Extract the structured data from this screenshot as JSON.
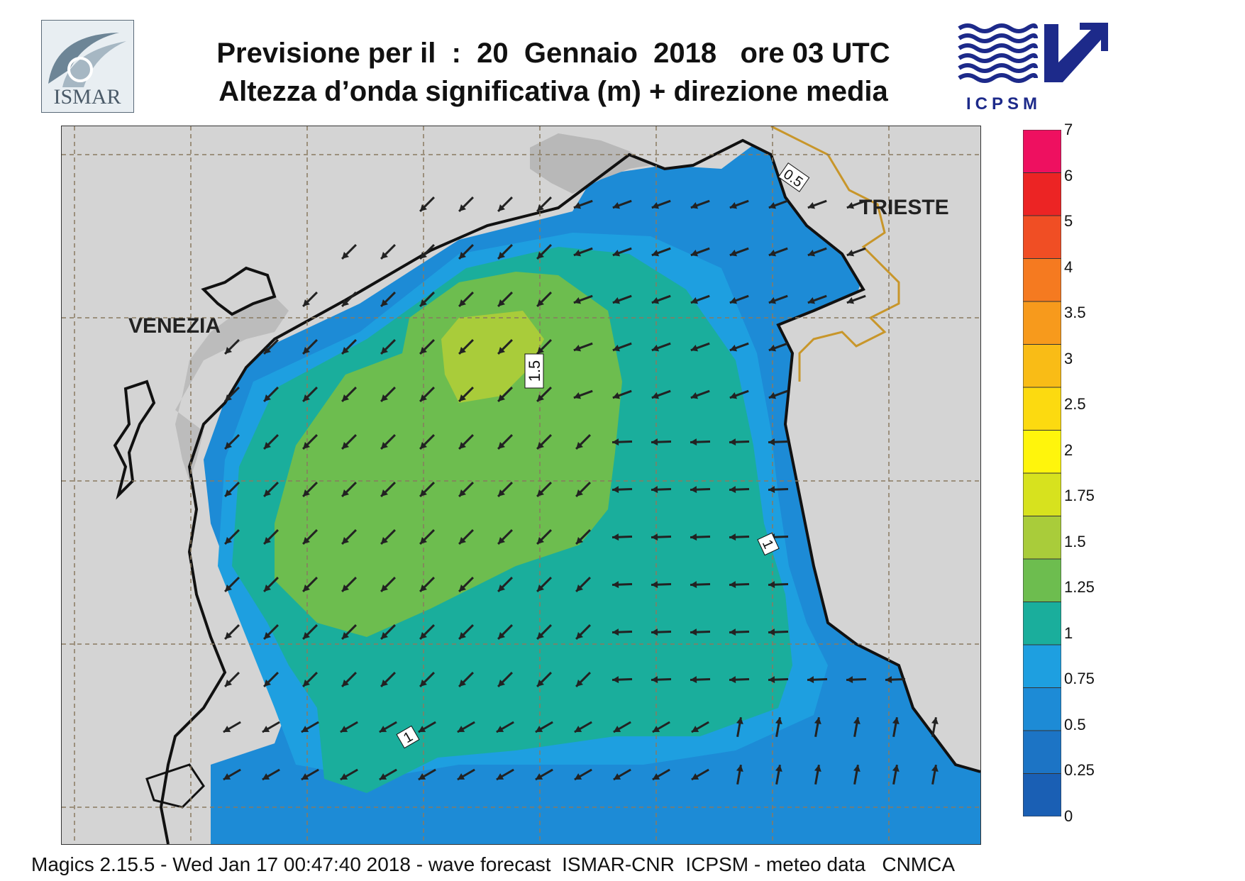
{
  "header": {
    "title_line1": "Previsione per il  :  20  Gennaio  2018   ore 03 UTC",
    "title_line2": "Altezza d’onda significativa (m) + direzione media"
  },
  "logos": {
    "left": {
      "name": "ismar-logo",
      "text": "ISMAR"
    },
    "right": {
      "name": "icpsm-logo",
      "text": "ICPSM"
    }
  },
  "map": {
    "cities": {
      "venezia": "VENEZIA",
      "trieste": "TRIESTE"
    },
    "contour_labels": [
      "0.5",
      "1.5",
      "1",
      "1"
    ],
    "colors": {
      "land": "#d4d4d4",
      "coast": "#111111",
      "border": "#c8962a",
      "grid": "#8a7a60",
      "arrow": "#222222"
    }
  },
  "legend": {
    "ticks": [
      "7",
      "6",
      "5",
      "4",
      "3.5",
      "3",
      "2.5",
      "2",
      "1.75",
      "1.5",
      "1.25",
      "1",
      "0.75",
      "0.5",
      "0.25",
      "0"
    ],
    "colors": [
      "#ee1060",
      "#ec2424",
      "#f04e24",
      "#f57a20",
      "#f79a1c",
      "#f9bc16",
      "#fcda10",
      "#fff50c",
      "#d7e21e",
      "#a9cc3a",
      "#6dbd4f",
      "#1aae9c",
      "#1e9fe0",
      "#1d8bd6",
      "#1c74c5",
      "#1a5fb4"
    ]
  },
  "footer": {
    "text": "Magics 2.15.5 - Wed Jan 17 00:47:40 2018 - wave forecast  ISMAR-CNR  ICPSM - meteo data   CNMCA"
  }
}
